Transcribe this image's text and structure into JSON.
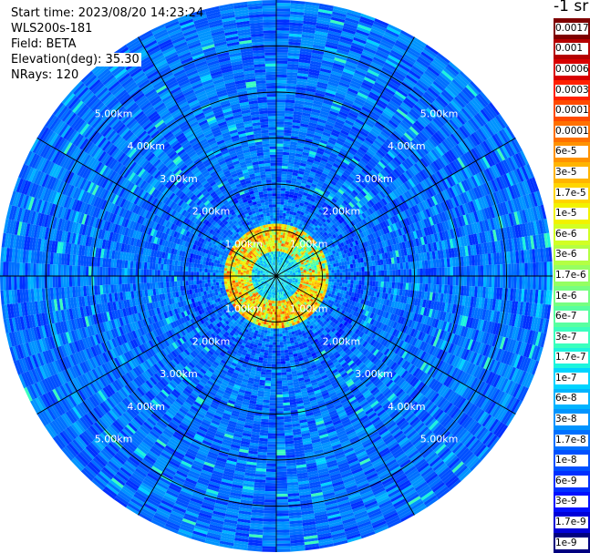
{
  "info": {
    "start_time": "Start time: 2023/08/20 14:23:24",
    "instrument": "WLS200s-181",
    "field": "Field: BETA",
    "elevation": "Elevation(deg): 35.30",
    "nrays": "NRays: 120"
  },
  "colorbar": {
    "unit": "-1 sr",
    "labels": [
      "0.0017",
      "0.001",
      "0.0006",
      "0.0003",
      "0.00017",
      "0.0001",
      "6e-5",
      "3e-5",
      "1.7e-5",
      "1e-5",
      "6e-6",
      "3e-6",
      "1.7e-6",
      "1e-6",
      "6e-7",
      "3e-7",
      "1.7e-7",
      "1e-7",
      "6e-8",
      "3e-8",
      "1.7e-8",
      "1e-8",
      "6e-9",
      "3e-9",
      "1.7e-9",
      "1e-9"
    ],
    "colors": [
      "#7f0000",
      "#b50000",
      "#d80000",
      "#ff2000",
      "#ff4a00",
      "#ff7000",
      "#ff9200",
      "#ffb400",
      "#ffd500",
      "#f2f200",
      "#d2ff24",
      "#b4ff43",
      "#95ff62",
      "#76ff81",
      "#58ffa0",
      "#3affbe",
      "#1cf4dd",
      "#00d4ff",
      "#00b4ff",
      "#0094ff",
      "#0070ff",
      "#0050ff",
      "#0030ff",
      "#0010ff",
      "#0000d8",
      "#00007f"
    ]
  },
  "chart_data": {
    "type": "heatmap",
    "projection": "polar-ppi",
    "rays": 120,
    "range_rings_km": [
      1,
      2,
      3,
      4,
      5
    ],
    "range_labels": [
      "1.00km",
      "2.00km",
      "3.00km",
      "4.00km",
      "5.00km"
    ],
    "max_range_km": 6,
    "radials_count": 12,
    "field": "BETA",
    "elevation_deg": 35.3,
    "value_scale": "log",
    "vmin": 1e-09,
    "vmax": 0.0017,
    "features": {
      "background_level": "1e-8 to 3e-8",
      "near_range_echo_km": [
        0.6,
        1.1
      ],
      "near_range_echo_level": "1e-5 to 6e-5",
      "center_level": "1e-7 to 3e-7"
    }
  }
}
